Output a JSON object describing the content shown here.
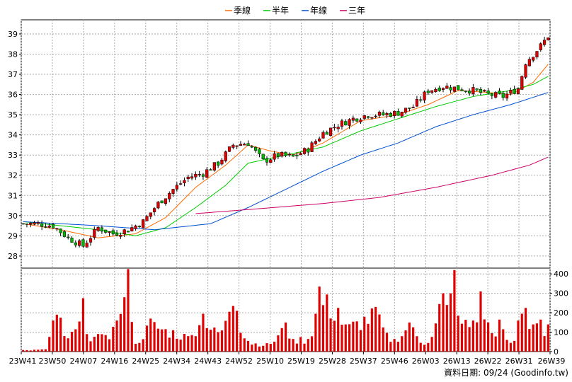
{
  "chart_data": {
    "type": "candlestick-volume",
    "legend": [
      {
        "name": "季線",
        "color": "#ff6a00"
      },
      {
        "name": "半年",
        "color": "#00cc00"
      },
      {
        "name": "年線",
        "color": "#0050d0"
      },
      {
        "name": "三年",
        "color": "#cc0066"
      }
    ],
    "legend_placement": "top-center",
    "price_axis": {
      "min": 28,
      "max": 39,
      "ticks": [
        28,
        29,
        30,
        31,
        32,
        33,
        34,
        35,
        36,
        37,
        38,
        39
      ]
    },
    "volume_axis": {
      "min": 0,
      "max": 400,
      "ticks": [
        0,
        100,
        200,
        300,
        400
      ]
    },
    "x_ticks": [
      "23W41",
      "23W50",
      "24W07",
      "24W16",
      "24W25",
      "24W34",
      "24W43",
      "24W52",
      "25W10",
      "25W19",
      "25W28",
      "25W37",
      "25W46",
      "26W03",
      "26W13",
      "26W22",
      "26W31",
      "26W39"
    ],
    "grid": true,
    "source": "資料日期: 09/24 (Goodinfo.tw)",
    "price_keypoints": [
      [
        0,
        29.6
      ],
      [
        4,
        29.6
      ],
      [
        8,
        29.5
      ],
      [
        12,
        28.9
      ],
      [
        16,
        28.5
      ],
      [
        20,
        29.4
      ],
      [
        24,
        29.1
      ],
      [
        28,
        29.3
      ],
      [
        32,
        29.7
      ],
      [
        36,
        30.6
      ],
      [
        40,
        31.3
      ],
      [
        44,
        31.9
      ],
      [
        48,
        32.1
      ],
      [
        52,
        32.6
      ],
      [
        56,
        33.5
      ],
      [
        60,
        33.6
      ],
      [
        64,
        32.7
      ],
      [
        68,
        33.0
      ],
      [
        72,
        32.9
      ],
      [
        76,
        33.3
      ],
      [
        80,
        34.1
      ],
      [
        84,
        34.5
      ],
      [
        88,
        34.8
      ],
      [
        92,
        35.0
      ],
      [
        96,
        35.0
      ],
      [
        100,
        35.1
      ],
      [
        104,
        35.4
      ],
      [
        108,
        36.2
      ],
      [
        112,
        36.4
      ],
      [
        116,
        36.3
      ],
      [
        120,
        36.2
      ],
      [
        124,
        36.0
      ],
      [
        128,
        35.9
      ],
      [
        132,
        36.3
      ],
      [
        134,
        37.6
      ],
      [
        136,
        38.0
      ],
      [
        138,
        38.4
      ],
      [
        140,
        38.9
      ]
    ],
    "ma_keypoints": {
      "季線": [
        [
          0,
          29.6
        ],
        [
          10,
          29.3
        ],
        [
          20,
          28.9
        ],
        [
          30,
          29.1
        ],
        [
          38,
          29.9
        ],
        [
          46,
          31.4
        ],
        [
          54,
          32.5
        ],
        [
          60,
          33.5
        ],
        [
          66,
          33.2
        ],
        [
          72,
          33.0
        ],
        [
          80,
          33.6
        ],
        [
          90,
          34.7
        ],
        [
          100,
          35.0
        ],
        [
          108,
          35.5
        ],
        [
          116,
          36.2
        ],
        [
          124,
          36.1
        ],
        [
          130,
          36.0
        ],
        [
          136,
          36.6
        ],
        [
          140,
          37.5
        ]
      ],
      "半年": [
        [
          0,
          29.7
        ],
        [
          10,
          29.5
        ],
        [
          20,
          29.3
        ],
        [
          30,
          29.0
        ],
        [
          38,
          29.4
        ],
        [
          46,
          30.4
        ],
        [
          54,
          31.5
        ],
        [
          60,
          32.6
        ],
        [
          70,
          33.0
        ],
        [
          80,
          33.4
        ],
        [
          90,
          34.2
        ],
        [
          100,
          34.8
        ],
        [
          110,
          35.4
        ],
        [
          120,
          35.9
        ],
        [
          130,
          36.2
        ],
        [
          136,
          36.5
        ],
        [
          140,
          36.9
        ]
      ],
      "年線": [
        [
          0,
          29.7
        ],
        [
          20,
          29.5
        ],
        [
          35,
          29.3
        ],
        [
          50,
          29.6
        ],
        [
          60,
          30.4
        ],
        [
          70,
          31.3
        ],
        [
          80,
          32.2
        ],
        [
          90,
          33.0
        ],
        [
          100,
          33.6
        ],
        [
          110,
          34.4
        ],
        [
          120,
          35.0
        ],
        [
          130,
          35.5
        ],
        [
          140,
          36.1
        ]
      ],
      "三年": [
        [
          46,
          30.1
        ],
        [
          60,
          30.3
        ],
        [
          80,
          30.6
        ],
        [
          95,
          30.9
        ],
        [
          110,
          31.4
        ],
        [
          125,
          32.0
        ],
        [
          135,
          32.5
        ],
        [
          140,
          32.9
        ]
      ]
    },
    "volume_keypoints": [
      [
        0,
        8
      ],
      [
        6,
        12
      ],
      [
        8,
        160
      ],
      [
        9,
        190
      ],
      [
        10,
        175
      ],
      [
        11,
        80
      ],
      [
        14,
        115
      ],
      [
        15,
        155
      ],
      [
        16,
        275
      ],
      [
        17,
        90
      ],
      [
        22,
        85
      ],
      [
        25,
        160
      ],
      [
        27,
        280
      ],
      [
        28,
        425
      ],
      [
        30,
        40
      ],
      [
        34,
        170
      ],
      [
        40,
        110
      ],
      [
        45,
        85
      ],
      [
        48,
        195
      ],
      [
        52,
        100
      ],
      [
        55,
        205
      ],
      [
        56,
        235
      ],
      [
        57,
        210
      ],
      [
        60,
        55
      ],
      [
        66,
        40
      ],
      [
        70,
        150
      ],
      [
        72,
        65
      ],
      [
        74,
        75
      ],
      [
        76,
        65
      ],
      [
        78,
        195
      ],
      [
        79,
        335
      ],
      [
        84,
        225
      ],
      [
        86,
        140
      ],
      [
        94,
        230
      ],
      [
        98,
        50
      ],
      [
        103,
        150
      ],
      [
        104,
        125
      ],
      [
        107,
        35
      ],
      [
        110,
        145
      ],
      [
        111,
        245
      ],
      [
        112,
        300
      ],
      [
        113,
        240
      ],
      [
        114,
        300
      ],
      [
        115,
        420
      ],
      [
        116,
        185
      ],
      [
        120,
        160
      ],
      [
        122,
        310
      ],
      [
        125,
        95
      ],
      [
        127,
        165
      ],
      [
        128,
        115
      ],
      [
        130,
        45
      ],
      [
        131,
        55
      ],
      [
        132,
        160
      ],
      [
        133,
        195
      ],
      [
        134,
        225
      ],
      [
        136,
        140
      ],
      [
        137,
        145
      ],
      [
        138,
        165
      ],
      [
        139,
        80
      ],
      [
        140,
        140
      ]
    ],
    "n_bars": 141
  }
}
